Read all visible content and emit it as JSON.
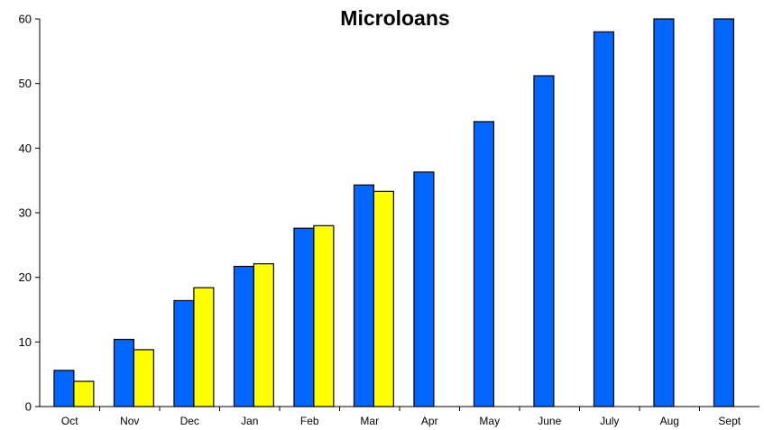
{
  "chart_data": {
    "type": "bar",
    "title": "Microloans",
    "xlabel": "",
    "ylabel": "",
    "categories": [
      "Oct",
      "Nov",
      "Dec",
      "Jan",
      "Feb",
      "Mar",
      "Apr",
      "May",
      "June",
      "July",
      "Aug",
      "Sept"
    ],
    "series": [
      {
        "color": "#0066ff",
        "values": [
          5.6,
          10.4,
          16.4,
          21.7,
          27.6,
          34.3,
          36.3,
          44.1,
          51.2,
          58.0,
          60.0,
          60.0
        ]
      },
      {
        "color": "#ffff00",
        "values": [
          3.9,
          8.8,
          18.4,
          22.1,
          28.0,
          33.3,
          null,
          null,
          null,
          null,
          null,
          null
        ]
      }
    ],
    "ylim": [
      0,
      60
    ],
    "yticks": [
      0,
      10,
      20,
      30,
      40,
      50,
      60
    ],
    "grid": false,
    "legend": "none"
  }
}
